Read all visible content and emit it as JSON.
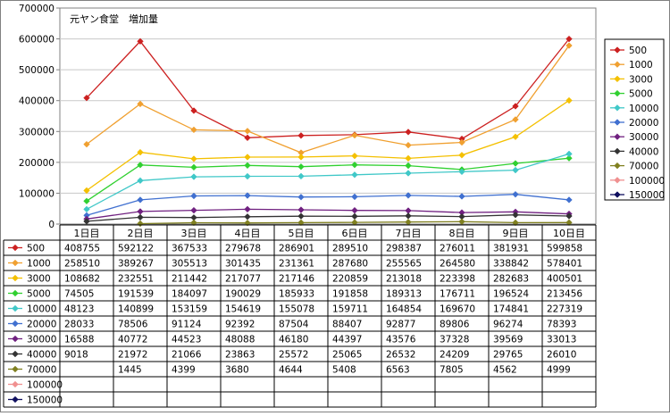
{
  "chart_data": {
    "type": "line",
    "title": "元ヤン食堂　増加量",
    "xlabel": "",
    "ylabel": "",
    "categories": [
      "1日目",
      "2日目",
      "3日目",
      "4日目",
      "5日目",
      "6日目",
      "7日目",
      "8日目",
      "9日目",
      "10日目"
    ],
    "ylim": [
      0,
      700000
    ],
    "yticks": [
      0,
      100000,
      200000,
      300000,
      400000,
      500000,
      600000,
      700000
    ],
    "ytick_labels": [
      "0",
      "100000",
      "200000",
      "300000",
      "400000",
      "500000",
      "600000",
      "700000"
    ],
    "grid": true,
    "legend_position": "right",
    "series": [
      {
        "name": "500",
        "color": "#cc2020",
        "values": [
          408755,
          592122,
          367533,
          279678,
          286901,
          289510,
          298387,
          276011,
          381931,
          599858
        ],
        "labels": [
          "408755",
          "592122",
          "367533",
          "279678",
          "286901",
          "289510",
          "298387",
          "276011",
          "381931",
          "599858"
        ]
      },
      {
        "name": "1000",
        "color": "#f0a030",
        "values": [
          258510,
          389267,
          305513,
          301435,
          231361,
          287680,
          255565,
          264580,
          338842,
          578401
        ],
        "labels": [
          "258510",
          "389267",
          "305513",
          "301435",
          "231361",
          "287680",
          "255565",
          "264580",
          "338842",
          "578401"
        ]
      },
      {
        "name": "3000",
        "color": "#f4c000",
        "values": [
          108682,
          232551,
          211442,
          217077,
          217146,
          220859,
          213018,
          223398,
          282683,
          400501
        ],
        "labels": [
          "108682",
          "232551",
          "211442",
          "217077",
          "217146",
          "220859",
          "213018",
          "223398",
          "282683",
          "400501"
        ]
      },
      {
        "name": "5000",
        "color": "#30d030",
        "values": [
          74505,
          191539,
          184097,
          190029,
          185933,
          191858,
          189313,
          176711,
          196524,
          213456
        ],
        "labels": [
          "74505",
          "191539",
          "184097",
          "190029",
          "185933",
          "191858",
          "189313",
          "176711",
          "196524",
          "213456"
        ]
      },
      {
        "name": "10000",
        "color": "#40c8c8",
        "values": [
          48123,
          140899,
          153159,
          154619,
          155078,
          159711,
          164854,
          169670,
          174841,
          227319
        ],
        "labels": [
          "48123",
          "140899",
          "153159",
          "154619",
          "155078",
          "159711",
          "164854",
          "169670",
          "174841",
          "227319"
        ]
      },
      {
        "name": "20000",
        "color": "#4070d0",
        "values": [
          28033,
          78506,
          91124,
          92392,
          87504,
          88407,
          92877,
          89806,
          96274,
          78393
        ],
        "labels": [
          "28033",
          "78506",
          "91124",
          "92392",
          "87504",
          "88407",
          "92877",
          "89806",
          "96274",
          "78393"
        ]
      },
      {
        "name": "30000",
        "color": "#702080",
        "values": [
          16588,
          40772,
          44523,
          48088,
          46180,
          44397,
          43576,
          37328,
          39569,
          33013
        ],
        "labels": [
          "16588",
          "40772",
          "44523",
          "48088",
          "46180",
          "44397",
          "43576",
          "37328",
          "39569",
          "33013"
        ]
      },
      {
        "name": "40000",
        "color": "#333333",
        "values": [
          9018,
          21972,
          21066,
          23863,
          25572,
          25065,
          26532,
          24209,
          29765,
          26010
        ],
        "labels": [
          "9018",
          "21972",
          "21066",
          "23863",
          "25572",
          "25065",
          "26532",
          "24209",
          "29765",
          "26010"
        ]
      },
      {
        "name": "70000",
        "color": "#808020",
        "values": [
          null,
          1445,
          4399,
          3680,
          4644,
          5408,
          6563,
          7805,
          4562,
          4999
        ],
        "labels": [
          "",
          "1445",
          "4399",
          "3680",
          "4644",
          "5408",
          "6563",
          "7805",
          "4562",
          "4999"
        ]
      },
      {
        "name": "100000",
        "color": "#f09090",
        "values": [
          null,
          null,
          null,
          null,
          null,
          null,
          null,
          null,
          null,
          null
        ],
        "labels": [
          "",
          "",
          "",
          "",
          "",
          "",
          "",
          "",
          "",
          ""
        ]
      },
      {
        "name": "150000",
        "color": "#101060",
        "values": [
          null,
          null,
          null,
          null,
          null,
          null,
          null,
          null,
          null,
          null
        ],
        "labels": [
          "",
          "",
          "",
          "",
          "",
          "",
          "",
          "",
          "",
          ""
        ]
      }
    ]
  }
}
